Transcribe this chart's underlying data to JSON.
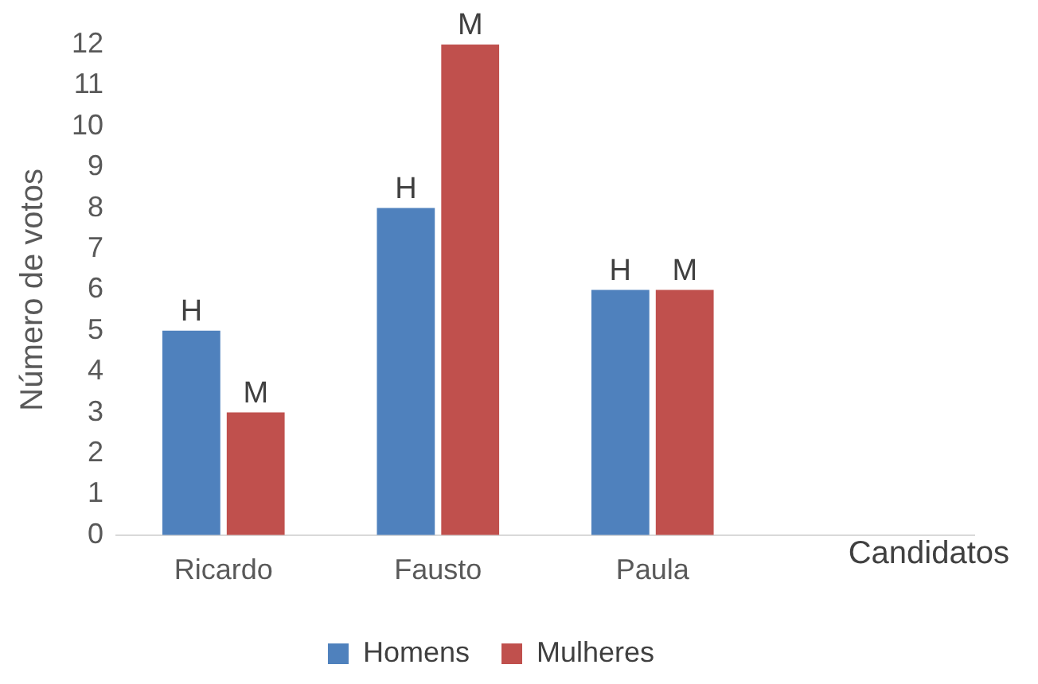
{
  "chart_data": {
    "type": "bar",
    "xlabel": "Candidatos",
    "ylabel": "Número de votos",
    "categories": [
      "Ricardo",
      "Fausto",
      "Paula",
      null
    ],
    "series": [
      {
        "name": "Homens",
        "color": "#4f81bd",
        "values": [
          5,
          8,
          6,
          null
        ],
        "value_labels": [
          "H",
          "H",
          "H",
          null
        ]
      },
      {
        "name": "Mulheres",
        "color": "#c0504d",
        "values": [
          3,
          12,
          6,
          null
        ],
        "value_labels": [
          "M",
          "M",
          "M",
          null
        ]
      }
    ],
    "ylim": [
      0,
      12
    ],
    "yticks": [
      0,
      1,
      2,
      3,
      4,
      5,
      6,
      7,
      8,
      9,
      10,
      11,
      12
    ],
    "grid": false,
    "legend": "bottom"
  }
}
